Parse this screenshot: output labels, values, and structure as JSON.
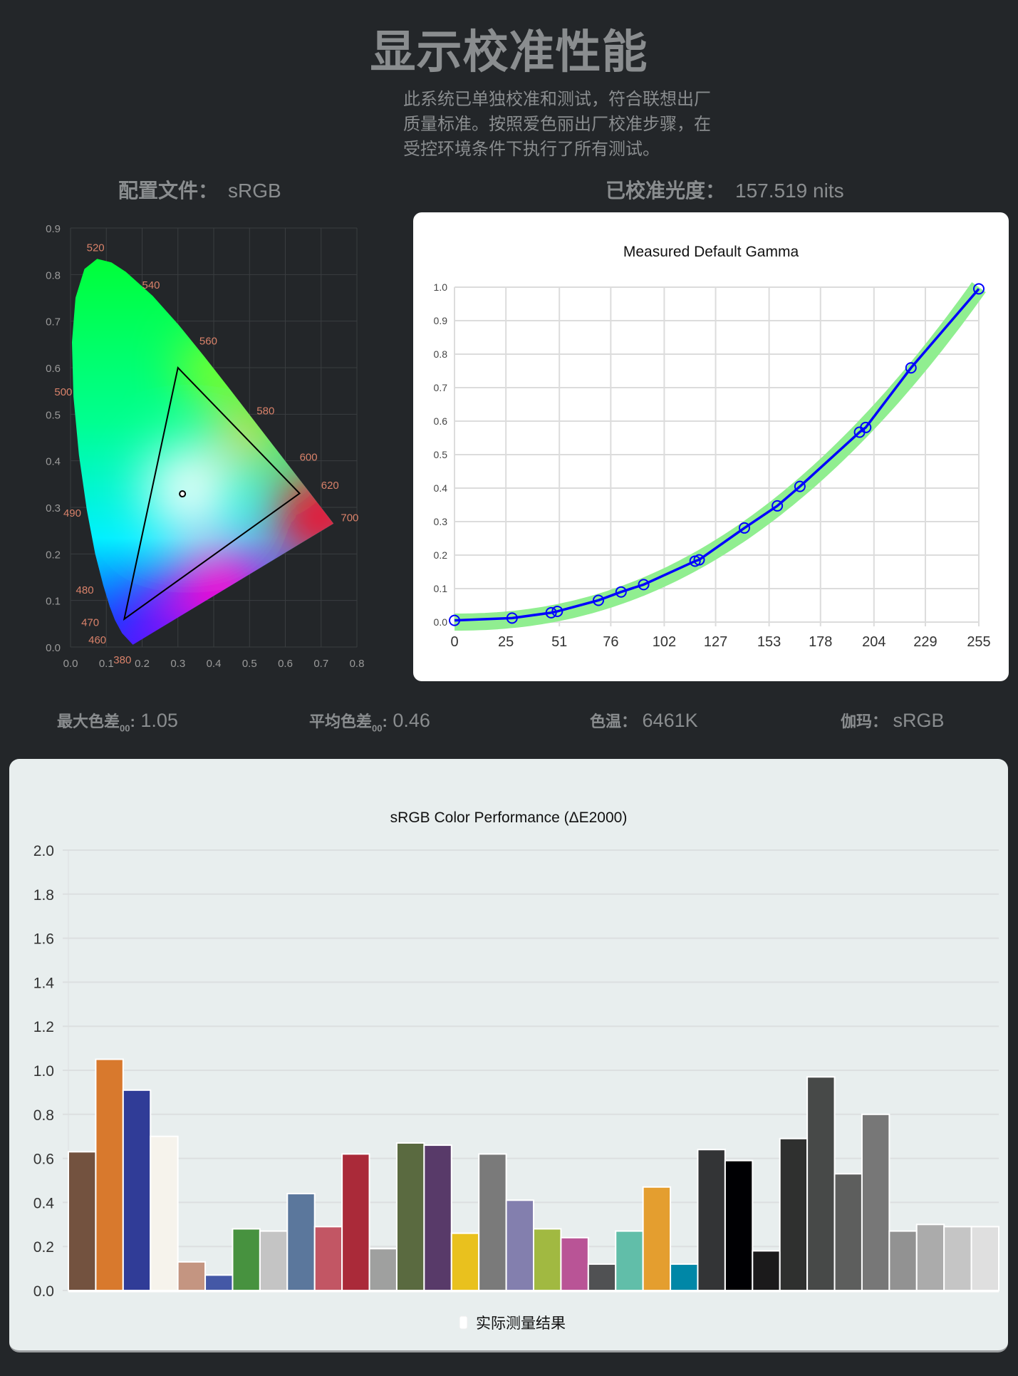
{
  "header": {
    "title": "显示校准性能",
    "description": "此系统已单独校准和测试，符合联想出厂质量标准。按照爱色丽出厂校准步骤，在受控环境条件下执行了所有测试。"
  },
  "profile": {
    "label": "配置文件：",
    "value": "sRGB"
  },
  "luminance": {
    "label": "已校准光度：",
    "value": "157.519 nits"
  },
  "stats": {
    "max_de_label": "最大色差",
    "max_de_sub": "00",
    "max_de_colon": ":",
    "max_de_value": "1.05",
    "avg_de_label": "平均色差",
    "avg_de_sub": "00",
    "avg_de_colon": ":",
    "avg_de_value": "0.46",
    "cct_label": "色温：",
    "cct_value": "6461K",
    "gamma_label": "伽玛：",
    "gamma_value": "sRGB"
  },
  "colors": {
    "background": "#232629",
    "gamma_band": "#90ee90",
    "gamma_line": "#0000ff",
    "wavelength_label": "#d9826a"
  },
  "chart_data": [
    {
      "type": "scatter",
      "name": "cie-1931-chromaticity",
      "x_ticks": [
        "0.0",
        "0.1",
        "0.2",
        "0.3",
        "0.4",
        "0.5",
        "0.6",
        "0.7",
        "0.8"
      ],
      "y_ticks": [
        "0.0",
        "0.1",
        "0.2",
        "0.3",
        "0.4",
        "0.5",
        "0.6",
        "0.7",
        "0.8",
        "0.9"
      ],
      "xlim": [
        0,
        0.8
      ],
      "ylim": [
        0,
        0.9
      ],
      "wavelength_labels": [
        "380",
        "460",
        "470",
        "480",
        "490",
        "500",
        "520",
        "540",
        "560",
        "580",
        "600",
        "620",
        "700"
      ],
      "gamut_triangle": [
        [
          0.64,
          0.33
        ],
        [
          0.3,
          0.6
        ],
        [
          0.15,
          0.06
        ]
      ],
      "white_point": [
        0.3127,
        0.329
      ]
    },
    {
      "type": "line",
      "title": "Measured Default Gamma",
      "x_ticks": [
        "0",
        "25",
        "51",
        "76",
        "102",
        "127",
        "153",
        "178",
        "204",
        "229",
        "255"
      ],
      "y_ticks": [
        "0.0",
        "0.1",
        "0.2",
        "0.3",
        "0.4",
        "0.5",
        "0.6",
        "0.7",
        "0.8",
        "0.9",
        "1.0"
      ],
      "xlim": [
        0,
        255
      ],
      "ylim": [
        0,
        1.0
      ],
      "reference_gamma": 2.2,
      "points": [
        [
          0,
          0.005
        ],
        [
          28,
          0.012
        ],
        [
          47,
          0.028
        ],
        [
          50,
          0.032
        ],
        [
          70,
          0.065
        ],
        [
          81,
          0.09
        ],
        [
          92,
          0.112
        ],
        [
          117,
          0.182
        ],
        [
          119,
          0.186
        ],
        [
          141,
          0.281
        ],
        [
          157,
          0.347
        ],
        [
          168,
          0.405
        ],
        [
          197,
          0.567
        ],
        [
          200,
          0.581
        ],
        [
          222,
          0.759
        ],
        [
          255,
          0.995
        ]
      ]
    },
    {
      "type": "bar",
      "title": "sRGB Color Performance (ΔE2000)",
      "legend": "实际测量结果",
      "legend_placement": "bottom",
      "ylim": [
        0,
        2.0
      ],
      "y_ticks": [
        "0.0",
        "0.2",
        "0.4",
        "0.6",
        "0.8",
        "1.0",
        "1.2",
        "1.4",
        "1.6",
        "1.8",
        "2.0"
      ],
      "values": [
        0.63,
        1.05,
        0.91,
        0.7,
        0.13,
        0.07,
        0.28,
        0.27,
        0.44,
        0.29,
        0.62,
        0.19,
        0.67,
        0.66,
        0.26,
        0.62,
        0.41,
        0.28,
        0.24,
        0.12,
        0.27,
        0.47,
        0.12,
        0.64,
        0.59,
        0.18,
        0.69,
        0.97,
        0.53,
        0.8,
        0.27,
        0.3,
        0.29,
        0.29
      ],
      "bar_colors": [
        "#73523f",
        "#d8792d",
        "#303c97",
        "#f6f3ec",
        "#c49581",
        "#4458a6",
        "#47923f",
        "#c4c4c4",
        "#5b779c",
        "#c25664",
        "#aa2a39",
        "#9fa09f",
        "#5a6a40",
        "#583a69",
        "#e9c11e",
        "#7a7a7a",
        "#837fae",
        "#a1b941",
        "#b95496",
        "#505153",
        "#61bea9",
        "#e49e2f",
        "#0087a7",
        "#333436",
        "#000003",
        "#1b1a1b",
        "#2f302f",
        "#474948",
        "#5d5e5d",
        "#777777",
        "#929292",
        "#ababab",
        "#c5c5c5",
        "#dfdfdf"
      ]
    }
  ]
}
